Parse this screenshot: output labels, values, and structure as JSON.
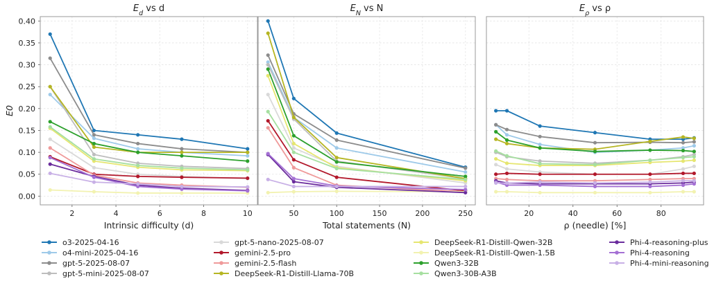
{
  "chart_data": [
    {
      "type": "line",
      "title": "E_d vs d",
      "xlabel": "Intrinsic difficulty (d)",
      "ylabel": "E0",
      "xlim": [
        0.55,
        10.45
      ],
      "ylim": [
        -0.02,
        0.41
      ],
      "xticks": [
        "2",
        "4",
        "6",
        "8",
        "10"
      ],
      "yticks": [
        "0.00",
        "0.05",
        "0.10",
        "0.15",
        "0.20",
        "0.25",
        "0.30",
        "0.35",
        "0.40"
      ],
      "grid": true,
      "x": [
        1,
        3,
        5,
        7,
        10
      ],
      "series": [
        {
          "name": "o3-2025-04-16",
          "values": [
            0.37,
            0.15,
            0.14,
            0.13,
            0.108
          ]
        },
        {
          "name": "o4-mini-2025-04-16",
          "values": [
            0.232,
            0.132,
            0.108,
            0.1,
            0.092
          ]
        },
        {
          "name": "gpt-5-2025-08-07",
          "values": [
            0.315,
            0.14,
            0.12,
            0.108,
            0.1
          ]
        },
        {
          "name": "gpt-5-mini-2025-08-07",
          "values": [
            0.25,
            0.095,
            0.075,
            0.068,
            0.063
          ]
        },
        {
          "name": "gpt-5-nano-2025-08-07",
          "values": [
            0.13,
            0.065,
            0.05,
            0.045,
            0.04
          ]
        },
        {
          "name": "gemini-2.5-pro",
          "values": [
            0.09,
            0.05,
            0.045,
            0.043,
            0.041
          ]
        },
        {
          "name": "gemini-2.5-flash",
          "values": [
            0.11,
            0.048,
            0.03,
            0.025,
            0.02
          ]
        },
        {
          "name": "DeepSeek-R1-Distill-Llama-70B",
          "values": [
            0.25,
            0.112,
            0.1,
            0.1,
            0.1
          ]
        },
        {
          "name": "DeepSeek-R1-Distill-Qwen-32B",
          "values": [
            0.155,
            0.08,
            0.066,
            0.06,
            0.058
          ]
        },
        {
          "name": "DeepSeek-R1-Distill-Qwen-1.5B",
          "values": [
            0.014,
            0.01,
            0.007,
            0.007,
            0.007
          ]
        },
        {
          "name": "Qwen3-32B",
          "values": [
            0.17,
            0.12,
            0.1,
            0.092,
            0.08
          ]
        },
        {
          "name": "Qwen3-30B-A3B",
          "values": [
            0.158,
            0.085,
            0.07,
            0.064,
            0.06
          ]
        },
        {
          "name": "Phi-4-reasoning-plus",
          "values": [
            0.073,
            0.045,
            0.025,
            0.018,
            0.013
          ]
        },
        {
          "name": "Phi-4-reasoning",
          "values": [
            0.088,
            0.043,
            0.022,
            0.016,
            0.012
          ]
        },
        {
          "name": "Phi-4-mini-reasoning",
          "values": [
            0.052,
            0.032,
            0.028,
            0.022,
            0.021
          ]
        }
      ]
    },
    {
      "type": "line",
      "title": "E_N vs N",
      "xlabel": "Total statements (N)",
      "ylabel": "",
      "xlim": [
        8.5,
        261.5
      ],
      "ylim": [
        -0.02,
        0.41
      ],
      "xticks": [
        "50",
        "100",
        "150",
        "200",
        "250"
      ],
      "grid": true,
      "x": [
        20,
        50,
        100,
        250
      ],
      "series": [
        {
          "name": "o3-2025-04-16",
          "values": [
            0.4,
            0.223,
            0.144,
            0.066
          ]
        },
        {
          "name": "o4-mini-2025-04-16",
          "values": [
            0.306,
            0.18,
            0.11,
            0.055
          ]
        },
        {
          "name": "gpt-5-2025-08-07",
          "values": [
            0.322,
            0.188,
            0.128,
            0.064
          ]
        },
        {
          "name": "gpt-5-mini-2025-08-07",
          "values": [
            0.3,
            0.176,
            0.08,
            0.04
          ]
        },
        {
          "name": "gpt-5-nano-2025-08-07",
          "values": [
            0.232,
            0.11,
            0.068,
            0.03
          ]
        },
        {
          "name": "gemini-2.5-pro",
          "values": [
            0.172,
            0.083,
            0.043,
            0.012
          ]
        },
        {
          "name": "gemini-2.5-flash",
          "values": [
            0.156,
            0.065,
            0.025,
            0.01
          ]
        },
        {
          "name": "DeepSeek-R1-Distill-Llama-70B",
          "values": [
            0.372,
            0.18,
            0.088,
            0.04
          ]
        },
        {
          "name": "DeepSeek-R1-Distill-Qwen-32B",
          "values": [
            0.275,
            0.12,
            0.065,
            0.035
          ]
        },
        {
          "name": "DeepSeek-R1-Distill-Qwen-1.5B",
          "values": [
            0.008,
            0.01,
            0.011,
            0.01
          ]
        },
        {
          "name": "Qwen3-32B",
          "values": [
            0.29,
            0.138,
            0.078,
            0.045
          ]
        },
        {
          "name": "Qwen3-30B-A3B",
          "values": [
            0.193,
            0.1,
            0.063,
            0.038
          ]
        },
        {
          "name": "Phi-4-reasoning-plus",
          "values": [
            0.095,
            0.033,
            0.02,
            0.008
          ]
        },
        {
          "name": "Phi-4-reasoning",
          "values": [
            0.097,
            0.04,
            0.023,
            0.015
          ]
        },
        {
          "name": "Phi-4-mini-reasoning",
          "values": [
            0.038,
            0.022,
            0.022,
            0.022
          ]
        }
      ]
    },
    {
      "type": "line",
      "title": "E_ρ vs ρ",
      "xlabel": "ρ (needle) [%]",
      "ylabel": "",
      "xlim": [
        0.7,
        99.3
      ],
      "ylim": [
        -0.02,
        0.41
      ],
      "xticks": [
        "20",
        "40",
        "60",
        "80"
      ],
      "grid": true,
      "x": [
        5,
        10,
        25,
        50,
        75,
        90,
        95
      ],
      "series": [
        {
          "name": "o3-2025-04-16",
          "values": [
            0.195,
            0.195,
            0.16,
            0.145,
            0.13,
            0.13,
            0.133
          ]
        },
        {
          "name": "o4-mini-2025-04-16",
          "values": [
            0.163,
            0.14,
            0.118,
            0.1,
            0.105,
            0.11,
            0.115
          ]
        },
        {
          "name": "gpt-5-2025-08-07",
          "values": [
            0.163,
            0.152,
            0.136,
            0.122,
            0.123,
            0.122,
            0.124
          ]
        },
        {
          "name": "gpt-5-mini-2025-08-07",
          "values": [
            0.1,
            0.09,
            0.08,
            0.075,
            0.082,
            0.09,
            0.095
          ]
        },
        {
          "name": "gpt-5-nano-2025-08-07",
          "values": [
            0.072,
            0.062,
            0.055,
            0.05,
            0.05,
            0.062,
            0.068
          ]
        },
        {
          "name": "gemini-2.5-pro",
          "values": [
            0.05,
            0.052,
            0.05,
            0.05,
            0.05,
            0.052,
            0.052
          ]
        },
        {
          "name": "gemini-2.5-flash",
          "values": [
            0.04,
            0.038,
            0.035,
            0.035,
            0.038,
            0.04,
            0.04
          ]
        },
        {
          "name": "DeepSeek-R1-Distill-Llama-70B",
          "values": [
            0.13,
            0.12,
            0.11,
            0.107,
            0.125,
            0.135,
            0.132
          ]
        },
        {
          "name": "DeepSeek-R1-Distill-Qwen-32B",
          "values": [
            0.085,
            0.075,
            0.07,
            0.07,
            0.077,
            0.08,
            0.082
          ]
        },
        {
          "name": "DeepSeek-R1-Distill-Qwen-1.5B",
          "values": [
            0.01,
            0.01,
            0.008,
            0.008,
            0.008,
            0.01,
            0.01
          ]
        },
        {
          "name": "Qwen3-32B",
          "values": [
            0.147,
            0.128,
            0.11,
            0.102,
            0.105,
            0.104,
            0.102
          ]
        },
        {
          "name": "Qwen3-30B-A3B",
          "values": [
            0.103,
            0.092,
            0.074,
            0.072,
            0.082,
            0.088,
            0.09
          ]
        },
        {
          "name": "Phi-4-reasoning-plus",
          "values": [
            0.035,
            0.03,
            0.028,
            0.028,
            0.028,
            0.03,
            0.032
          ]
        },
        {
          "name": "Phi-4-reasoning",
          "values": [
            0.032,
            0.025,
            0.025,
            0.022,
            0.022,
            0.025,
            0.028
          ]
        },
        {
          "name": "Phi-4-mini-reasoning",
          "values": [
            0.03,
            0.03,
            0.032,
            0.03,
            0.032,
            0.035,
            0.035
          ]
        }
      ]
    }
  ],
  "legend": {
    "placement": "bottom",
    "entries": [
      {
        "name": "o3-2025-04-16",
        "color": "#1f77b4"
      },
      {
        "name": "o4-mini-2025-04-16",
        "color": "#9ecae9"
      },
      {
        "name": "gpt-5-2025-08-07",
        "color": "#8c8c8c"
      },
      {
        "name": "gpt-5-mini-2025-08-07",
        "color": "#bdbdbd"
      },
      {
        "name": "gpt-5-nano-2025-08-07",
        "color": "#d9d9d9"
      },
      {
        "name": "gemini-2.5-pro",
        "color": "#b2182b"
      },
      {
        "name": "gemini-2.5-flash",
        "color": "#ef9a9a"
      },
      {
        "name": "DeepSeek-R1-Distill-Llama-70B",
        "color": "#b5b522"
      },
      {
        "name": "DeepSeek-R1-Distill-Qwen-32B",
        "color": "#e6e670"
      },
      {
        "name": "DeepSeek-R1-Distill-Qwen-1.5B",
        "color": "#f2f2b0"
      },
      {
        "name": "Qwen3-32B",
        "color": "#2ca02c"
      },
      {
        "name": "Qwen3-30B-A3B",
        "color": "#a6dfa0"
      },
      {
        "name": "Phi-4-reasoning-plus",
        "color": "#6a2c9c"
      },
      {
        "name": "Phi-4-reasoning",
        "color": "#a470d4"
      },
      {
        "name": "Phi-4-mini-reasoning",
        "color": "#c8b0e6"
      }
    ]
  }
}
